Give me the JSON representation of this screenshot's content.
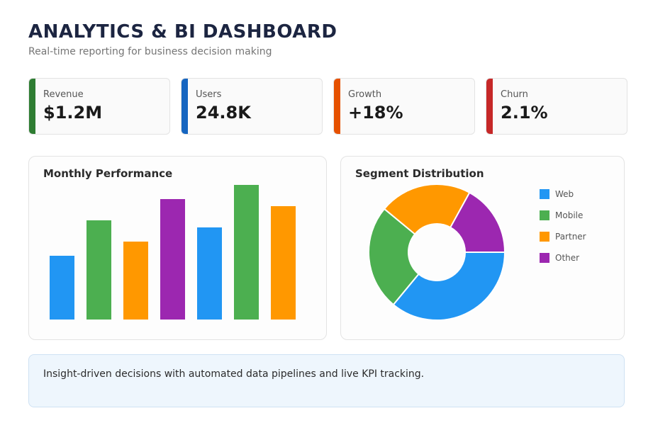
{
  "header": {
    "title": "ANALYTICS & BI DASHBOARD",
    "subtitle": "Real-time reporting for business decision making"
  },
  "kpis": [
    {
      "label": "Revenue",
      "value": "$1.2M",
      "color": "#2e7d32"
    },
    {
      "label": "Users",
      "value": "24.8K",
      "color": "#1565c0"
    },
    {
      "label": "Growth",
      "value": "+18%",
      "color": "#e65100"
    },
    {
      "label": "Churn",
      "value": "2.1%",
      "color": "#c62828"
    }
  ],
  "performance": {
    "title": "Monthly Performance"
  },
  "segments": {
    "title": "Segment Distribution",
    "legend": [
      {
        "label": "Web",
        "color": "#2196f3"
      },
      {
        "label": "Mobile",
        "color": "#4caf50"
      },
      {
        "label": "Partner",
        "color": "#ff9800"
      },
      {
        "label": "Other",
        "color": "#9c27b0"
      }
    ]
  },
  "insight": {
    "text": "Insight-driven decisions with automated data pipelines and live KPI tracking."
  },
  "chart_data": [
    {
      "type": "bar",
      "title": "Monthly Performance",
      "values": [
        45,
        70,
        55,
        85,
        65,
        95,
        80
      ],
      "colors": [
        "#2196f3",
        "#4caf50",
        "#ff9800",
        "#9c27b0",
        "#2196f3",
        "#4caf50",
        "#ff9800"
      ],
      "ylim": [
        0,
        100
      ]
    },
    {
      "type": "pie",
      "title": "Segment Distribution",
      "donut": true,
      "labels": [
        "Web",
        "Mobile",
        "Partner",
        "Other"
      ],
      "values": [
        36,
        25,
        22,
        17
      ],
      "colors": [
        "#2196f3",
        "#4caf50",
        "#ff9800",
        "#9c27b0"
      ]
    }
  ]
}
